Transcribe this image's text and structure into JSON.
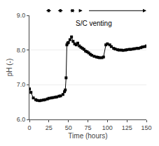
{
  "chart_data": {
    "type": "line",
    "title": "S/C venting",
    "xlabel": "Time (hours)",
    "ylabel": "pH (-)",
    "x": [
      0,
      2,
      5,
      8,
      10,
      13,
      15,
      18,
      20,
      23,
      25,
      28,
      30,
      33,
      35,
      38,
      40,
      43,
      45,
      46,
      47,
      48,
      49,
      50,
      52,
      54,
      56,
      58,
      60,
      62,
      64,
      66,
      68,
      70,
      72,
      74,
      76,
      78,
      80,
      83,
      86,
      88,
      90,
      93,
      95,
      98,
      100,
      103,
      105,
      108,
      110,
      113,
      115,
      118,
      120,
      123,
      125,
      128,
      130,
      133,
      135,
      138,
      140,
      143,
      145,
      148,
      150
    ],
    "values": [
      6.88,
      6.78,
      6.62,
      6.57,
      6.55,
      6.54,
      6.55,
      6.56,
      6.57,
      6.59,
      6.61,
      6.62,
      6.63,
      6.64,
      6.65,
      6.67,
      6.68,
      6.72,
      6.8,
      6.85,
      7.2,
      8.15,
      8.2,
      8.22,
      8.3,
      8.38,
      8.25,
      8.18,
      8.15,
      8.2,
      8.12,
      8.08,
      8.05,
      8.02,
      7.97,
      7.95,
      7.92,
      7.88,
      7.85,
      7.82,
      7.8,
      7.79,
      7.78,
      7.78,
      7.8,
      8.15,
      8.18,
      8.15,
      8.1,
      8.05,
      8.03,
      8.01,
      8.0,
      8.0,
      7.99,
      8.0,
      8.01,
      8.02,
      8.02,
      8.03,
      8.04,
      8.05,
      8.05,
      8.07,
      8.09,
      8.1,
      8.12
    ],
    "color": "#000000",
    "marker": "square",
    "xlim": [
      0,
      150
    ],
    "xticks": [
      0,
      25,
      50,
      75,
      100,
      125,
      150
    ],
    "ylim": [
      6.0,
      9.0
    ],
    "yticks": [
      {
        "value": 6.0,
        "label": "6.0"
      },
      {
        "value": 7.0,
        "label": "7.0"
      },
      {
        "value": 8.0,
        "label": "8.0"
      },
      {
        "value": 9.0,
        "label": "9.0"
      }
    ],
    "grid": "y",
    "arrows": [
      {
        "type": "double",
        "x1": 20,
        "x2": 28
      },
      {
        "type": "double",
        "x1": 35,
        "x2": 43
      },
      {
        "type": "double",
        "x1": 51,
        "x2": 58
      },
      {
        "type": "single_left",
        "x1": 68,
        "x2": 62
      },
      {
        "type": "single_right",
        "x1": 75,
        "x2": 150
      }
    ]
  }
}
